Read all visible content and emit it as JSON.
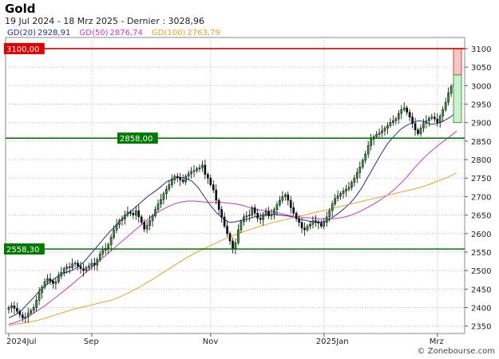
{
  "chart": {
    "title": "Gold",
    "subtitle": "19 Jul 2024 - 18 Mrz 2025 - Dernier : 3028,96",
    "watermark": "© Zonebourse.com"
  },
  "legend": [
    {
      "label": "GD(20)",
      "value": "2928,91",
      "color": "#1f2fa8"
    },
    {
      "label": "GD(50)",
      "value": "2876,74",
      "color": "#cc33cc"
    },
    {
      "label": "GD(100)",
      "value": "2763,79",
      "color": "#e8a020"
    }
  ],
  "levels": [
    {
      "value": 3100,
      "label": "3100,00",
      "color": "#e00000",
      "label_side": "left"
    },
    {
      "value": 2858,
      "label": "2858,00",
      "color": "#007a00",
      "label_side": "inside"
    },
    {
      "value": 2558.3,
      "label": "2558,30",
      "color": "#007a00",
      "label_side": "left"
    }
  ],
  "chart_data": {
    "type": "candlestick",
    "title": "Gold",
    "ylim": [
      2330,
      3130
    ],
    "yticks": [
      2350,
      2400,
      2450,
      2500,
      2550,
      2600,
      2650,
      2700,
      2750,
      2800,
      2850,
      2900,
      2950,
      3000,
      3050,
      3100
    ],
    "ytick_labels": [
      "2350",
      "2400",
      "2450",
      "2500",
      "2550",
      "2600",
      "2650",
      "2700",
      "2750",
      "2800",
      "2850",
      "2900",
      "2950",
      "3000",
      "3050",
      "3100"
    ],
    "xticks": [
      {
        "label": "2024Jul",
        "index": 0
      },
      {
        "label": "Sep",
        "index": 30
      },
      {
        "label": "Nov",
        "index": 73
      },
      {
        "label": "2025Jan",
        "index": 114
      },
      {
        "label": "Mrz",
        "index": 155
      }
    ],
    "grid": true,
    "close": [
      2400,
      2405,
      2398,
      2390,
      2380,
      2372,
      2375,
      2385,
      2392,
      2400,
      2420,
      2440,
      2455,
      2470,
      2478,
      2472,
      2465,
      2470,
      2485,
      2495,
      2505,
      2510,
      2508,
      2518,
      2520,
      2512,
      2505,
      2500,
      2508,
      2512,
      2520,
      2515,
      2530,
      2545,
      2555,
      2560,
      2570,
      2590,
      2610,
      2625,
      2635,
      2640,
      2650,
      2658,
      2655,
      2650,
      2662,
      2645,
      2630,
      2612,
      2622,
      2635,
      2648,
      2665,
      2680,
      2692,
      2708,
      2720,
      2732,
      2745,
      2755,
      2752,
      2745,
      2740,
      2755,
      2762,
      2768,
      2770,
      2775,
      2778,
      2785,
      2760,
      2750,
      2732,
      2718,
      2690,
      2665,
      2645,
      2620,
      2600,
      2580,
      2560,
      2575,
      2610,
      2632,
      2645,
      2648,
      2650,
      2670,
      2655,
      2642,
      2638,
      2652,
      2660,
      2648,
      2652,
      2665,
      2678,
      2690,
      2700,
      2705,
      2690,
      2670,
      2655,
      2640,
      2630,
      2615,
      2610,
      2620,
      2625,
      2635,
      2632,
      2628,
      2620,
      2630,
      2645,
      2662,
      2680,
      2695,
      2702,
      2708,
      2715,
      2720,
      2725,
      2738,
      2750,
      2765,
      2780,
      2798,
      2815,
      2838,
      2855,
      2862,
      2868,
      2872,
      2878,
      2885,
      2892,
      2900,
      2905,
      2910,
      2925,
      2935,
      2940,
      2928,
      2915,
      2898,
      2880,
      2870,
      2885,
      2898,
      2905,
      2912,
      2915,
      2910,
      2900,
      2918,
      2935,
      2955,
      2980,
      2998,
      3005,
      3028.96
    ],
    "open": [
      2395,
      2400,
      2405,
      2398,
      2390,
      2380,
      2372,
      2375,
      2385,
      2392,
      2400,
      2420,
      2440,
      2455,
      2470,
      2478,
      2472,
      2465,
      2470,
      2485,
      2495,
      2505,
      2510,
      2508,
      2518,
      2520,
      2512,
      2505,
      2500,
      2508,
      2512,
      2520,
      2515,
      2530,
      2545,
      2555,
      2560,
      2570,
      2590,
      2610,
      2625,
      2635,
      2640,
      2650,
      2658,
      2655,
      2650,
      2662,
      2645,
      2630,
      2612,
      2622,
      2635,
      2648,
      2665,
      2680,
      2692,
      2708,
      2720,
      2732,
      2745,
      2755,
      2752,
      2745,
      2740,
      2755,
      2762,
      2768,
      2770,
      2775,
      2778,
      2785,
      2760,
      2750,
      2732,
      2718,
      2690,
      2665,
      2645,
      2620,
      2600,
      2580,
      2560,
      2575,
      2610,
      2632,
      2645,
      2648,
      2650,
      2670,
      2655,
      2642,
      2638,
      2652,
      2660,
      2648,
      2652,
      2665,
      2678,
      2690,
      2700,
      2705,
      2690,
      2670,
      2655,
      2640,
      2630,
      2615,
      2610,
      2620,
      2625,
      2635,
      2632,
      2628,
      2620,
      2630,
      2645,
      2662,
      2680,
      2695,
      2702,
      2708,
      2715,
      2720,
      2725,
      2738,
      2750,
      2765,
      2780,
      2798,
      2815,
      2838,
      2855,
      2862,
      2868,
      2872,
      2878,
      2885,
      2892,
      2900,
      2905,
      2910,
      2925,
      2935,
      2940,
      2928,
      2915,
      2898,
      2880,
      2870,
      2885,
      2898,
      2905,
      2912,
      2915,
      2910,
      2900,
      2918,
      2935,
      2955,
      2980,
      2998,
      3005
    ],
    "series": [
      {
        "name": "GD(20)",
        "color": "#1f2fa8",
        "values": [
          2372,
          2380,
          2392,
          2410,
          2428,
          2448,
          2462,
          2475,
          2488,
          2495,
          2500,
          2510,
          2525,
          2545,
          2565,
          2585,
          2605,
          2622,
          2640,
          2655,
          2670,
          2685,
          2700,
          2712,
          2725,
          2740,
          2748,
          2752,
          2750,
          2742,
          2725,
          2700,
          2675,
          2655,
          2640,
          2630,
          2632,
          2636,
          2640,
          2645,
          2648,
          2650,
          2652,
          2650,
          2648,
          2645,
          2640,
          2636,
          2632,
          2630,
          2632,
          2640,
          2652,
          2665,
          2680,
          2700,
          2725,
          2755,
          2785,
          2815,
          2842,
          2862,
          2880,
          2892,
          2900,
          2905,
          2902,
          2895,
          2898,
          2905,
          2915,
          2929
        ]
      },
      {
        "name": "GD(50)",
        "color": "#cc33cc",
        "values": [
          2355,
          2360,
          2368,
          2378,
          2390,
          2402,
          2416,
          2430,
          2445,
          2460,
          2476,
          2492,
          2508,
          2524,
          2540,
          2556,
          2572,
          2588,
          2604,
          2620,
          2636,
          2650,
          2662,
          2672,
          2680,
          2685,
          2688,
          2688,
          2686,
          2684,
          2684,
          2684,
          2682,
          2680,
          2676,
          2670,
          2665,
          2662,
          2660,
          2656,
          2652,
          2648,
          2645,
          2643,
          2642,
          2640,
          2640,
          2640,
          2642,
          2646,
          2652,
          2660,
          2670,
          2680,
          2692,
          2705,
          2720,
          2738,
          2758,
          2780,
          2800,
          2818,
          2834,
          2848,
          2862,
          2877
        ]
      },
      {
        "name": "GD(100)",
        "color": "#e8a020",
        "values": [
          2352,
          2356,
          2360,
          2365,
          2372,
          2380,
          2388,
          2396,
          2402,
          2408,
          2414,
          2420,
          2430,
          2442,
          2455,
          2470,
          2486,
          2502,
          2518,
          2534,
          2548,
          2560,
          2572,
          2584,
          2594,
          2604,
          2612,
          2620,
          2628,
          2634,
          2640,
          2646,
          2652,
          2658,
          2664,
          2670,
          2676,
          2682,
          2688,
          2694,
          2700,
          2706,
          2712,
          2718,
          2724,
          2732,
          2742,
          2752,
          2764
        ]
      }
    ]
  }
}
